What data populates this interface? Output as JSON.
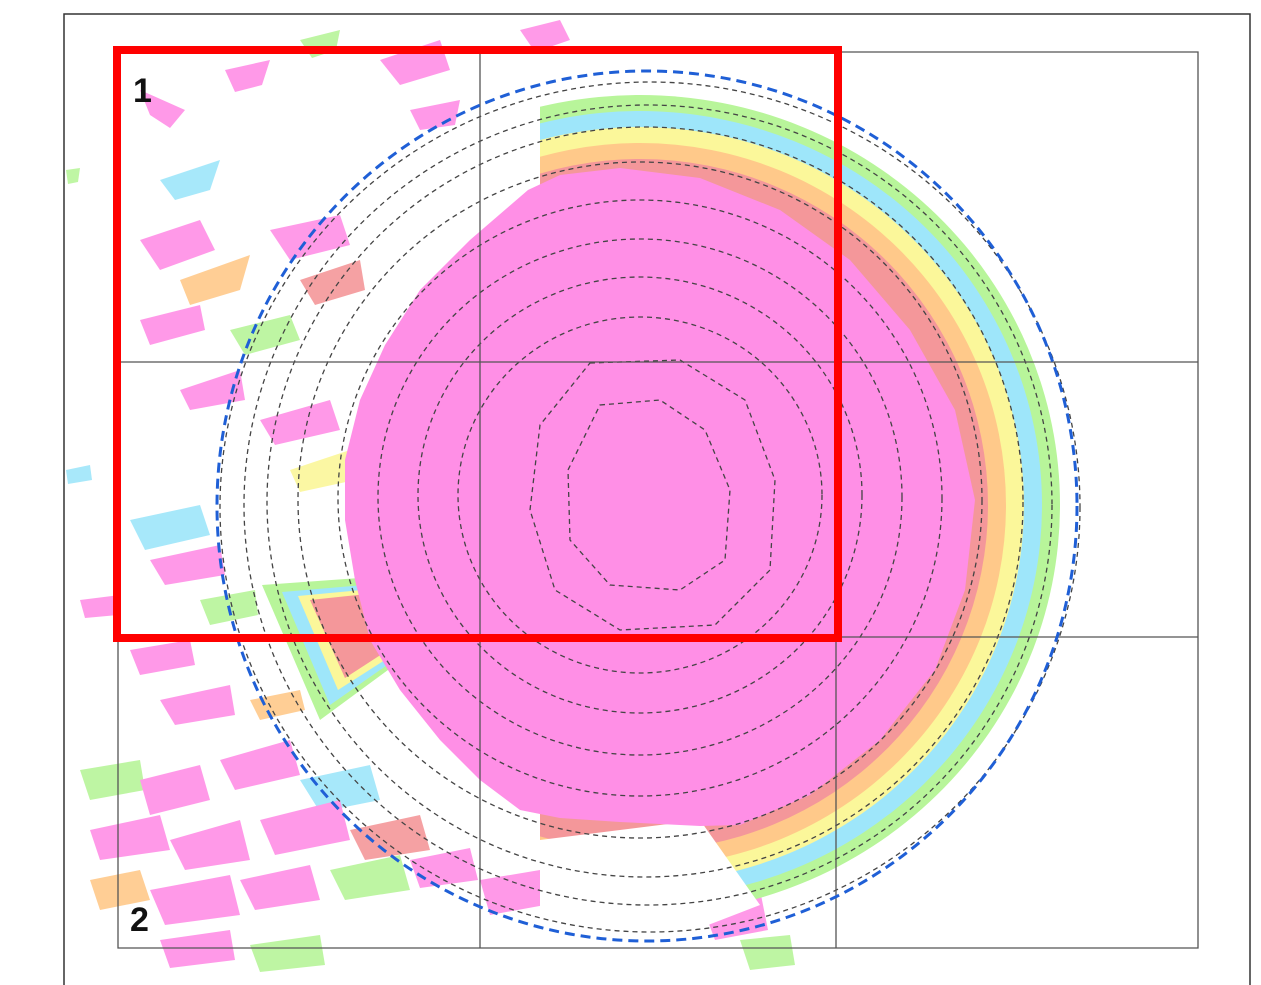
{
  "map": {
    "labels": {
      "zone_1": "1",
      "zone_2": "2"
    },
    "grid": {
      "columns": 3,
      "rows": 3
    },
    "colors": {
      "background": "#ffffff",
      "frame": "#333333",
      "grid_line": "#555555",
      "highlight_box": "#ff0000",
      "outer_range_ring": "#1f5fd6",
      "contour_ring": "#444444",
      "core": "#ff8fe6",
      "band_salmon": "#f4979a",
      "band_orange": "#ffc98a",
      "band_yellow": "#fbf79a",
      "band_cyan": "#9ee6fa",
      "band_green": "#b8f59a"
    },
    "contour_ring_count": 10,
    "highlight_box_label": "1"
  }
}
